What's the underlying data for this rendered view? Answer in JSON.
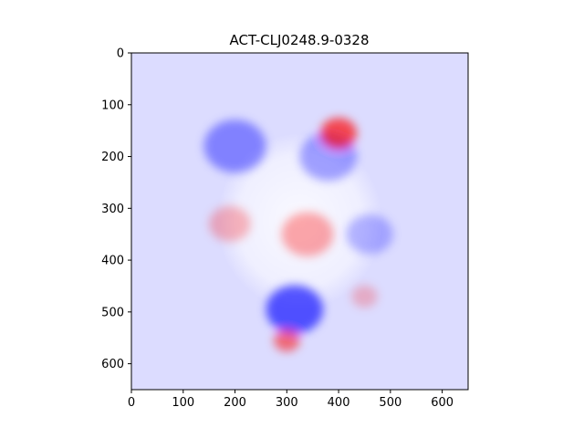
{
  "chart_data": {
    "type": "heatmap",
    "title": "ACT-CLJ0248.9-0328",
    "xlabel": "",
    "ylabel": "",
    "xlim": [
      0,
      650
    ],
    "ylim": [
      650,
      0
    ],
    "x_ticks": [
      0,
      100,
      200,
      300,
      400,
      500,
      600
    ],
    "y_ticks": [
      0,
      100,
      200,
      300,
      400,
      500,
      600
    ],
    "image_size": [
      650,
      650
    ],
    "colormap": "bwr",
    "background_color": "#dcdcff",
    "colors": {
      "negative": "#0000ff",
      "zero": "#ffffff",
      "positive": "#ff0000"
    },
    "blobs": [
      {
        "cx": 200,
        "cy": 180,
        "r": 60,
        "value": -0.55
      },
      {
        "cx": 315,
        "cy": 495,
        "r": 55,
        "value": -0.85
      },
      {
        "cx": 380,
        "cy": 200,
        "r": 55,
        "value": -0.45
      },
      {
        "cx": 460,
        "cy": 350,
        "r": 45,
        "value": -0.35
      },
      {
        "cx": 400,
        "cy": 155,
        "r": 35,
        "value": 0.9
      },
      {
        "cx": 340,
        "cy": 350,
        "r": 50,
        "value": 0.45
      },
      {
        "cx": 300,
        "cy": 555,
        "r": 25,
        "value": 0.7
      },
      {
        "cx": 190,
        "cy": 330,
        "r": 40,
        "value": 0.35
      },
      {
        "cx": 450,
        "cy": 470,
        "r": 25,
        "value": 0.3
      }
    ],
    "grid": false
  }
}
